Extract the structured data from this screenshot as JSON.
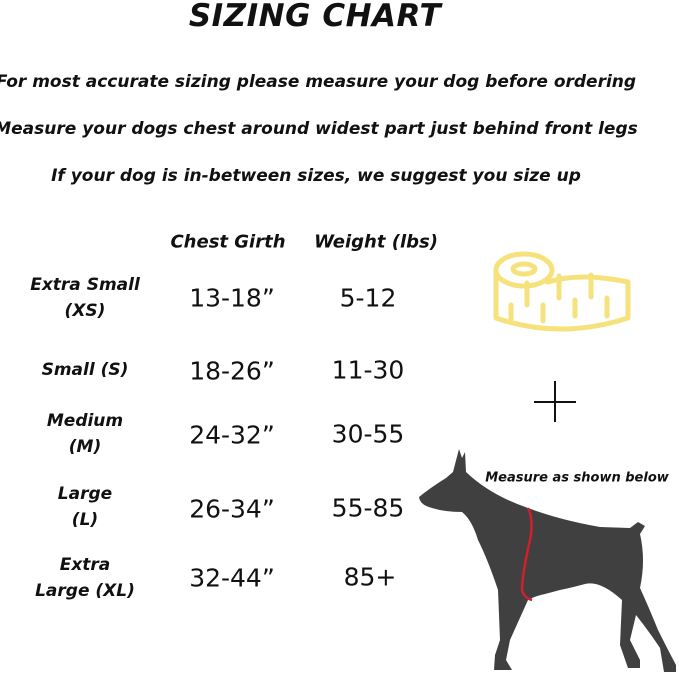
{
  "title": "SIZING CHART",
  "instructions": [
    "For most accurate sizing please measure your dog before ordering",
    "Measure your dogs chest around widest part just behind front legs",
    "If your dog is in-between sizes, we suggest you size up"
  ],
  "table": {
    "headers": [
      "Chest Girth",
      "Weight (lbs)"
    ],
    "rows": [
      {
        "size_line1": "Extra Small",
        "size_line2": "(XS)",
        "chest": "13-18”",
        "weight": "5-12"
      },
      {
        "size_line1": "Small (S)",
        "size_line2": "",
        "chest": "18-26”",
        "weight": "11-30"
      },
      {
        "size_line1": "Medium",
        "size_line2": "(M)",
        "chest": "24-32”",
        "weight": "30-55"
      },
      {
        "size_line1": "Large",
        "size_line2": "(L)",
        "chest": "26-34”",
        "weight": "55-85"
      },
      {
        "size_line1": "Extra",
        "size_line2": "Large (XL)",
        "chest": "32-44”",
        "weight": "85+"
      }
    ]
  },
  "illustration": {
    "measure_note": "Measure as shown below",
    "icons": [
      "tape-measure-icon",
      "plus-icon",
      "dog-silhouette"
    ],
    "colors": {
      "tape": "#f6e27c",
      "dog": "#404040",
      "measure_line": "#d0202a"
    }
  }
}
